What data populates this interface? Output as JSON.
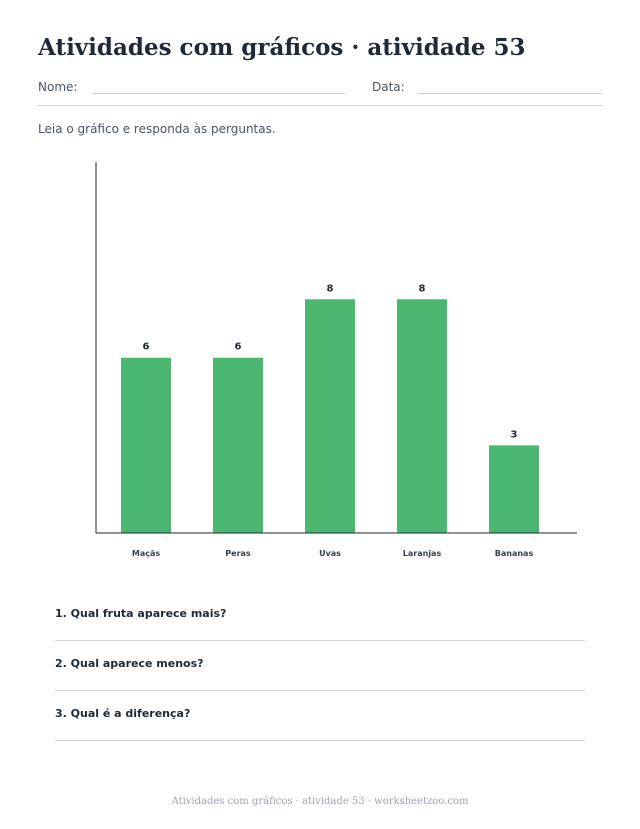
{
  "worksheet": {
    "title": "Atividades com gráficos · atividade 53",
    "name_label": "Nome:",
    "date_label": "Data:",
    "instructions": "Leia o gráfico e responda às perguntas."
  },
  "chart_data": {
    "type": "bar",
    "categories": [
      "Maçãs",
      "Peras",
      "Uvas",
      "Laranjas",
      "Bananas"
    ],
    "values": [
      6,
      6,
      8,
      8,
      3
    ],
    "data_labels": [
      "6",
      "6",
      "8",
      "8",
      "3"
    ],
    "title": "",
    "xlabel": "",
    "ylabel": "",
    "ylim": [
      0,
      12.7
    ],
    "grid": false,
    "bar_color": "#4bb771"
  },
  "questions": [
    "1. Qual fruta aparece mais?",
    "2. Qual aparece menos?",
    "3. Qual é a diferença?"
  ],
  "footer": "Atividades com gráficos · atividade 53 · worksheetzoo.com"
}
